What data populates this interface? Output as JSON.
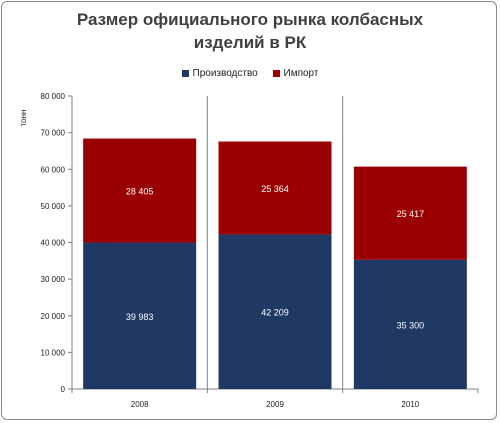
{
  "chart_data": {
    "type": "bar",
    "stacked": true,
    "title": "Размер официального рынка колбасных изделий в РК",
    "title_lines": [
      "Размер официального рынка колбасных",
      "изделий в РК"
    ],
    "ylabel": "тонн",
    "xlabel": "",
    "categories": [
      "2008",
      "2009",
      "2010"
    ],
    "series": [
      {
        "name": "Производство",
        "values": [
          39983,
          42209,
          35300
        ],
        "labels": [
          "39 983",
          "42 209",
          "35 300"
        ],
        "color": "#1f3864"
      },
      {
        "name": "Импорт",
        "values": [
          28405,
          25364,
          25417
        ],
        "labels": [
          "28 405",
          "25 364",
          "25 417"
        ],
        "color": "#9b0000"
      }
    ],
    "ylim": [
      0,
      80000
    ],
    "yticks": [
      0,
      10000,
      20000,
      30000,
      40000,
      50000,
      60000,
      70000,
      80000
    ],
    "ytick_labels": [
      "0",
      "10 000",
      "20 000",
      "30 000",
      "40 000",
      "50 000",
      "60 000",
      "70 000",
      "80 000"
    ],
    "grid": false,
    "legend_position": "top"
  }
}
